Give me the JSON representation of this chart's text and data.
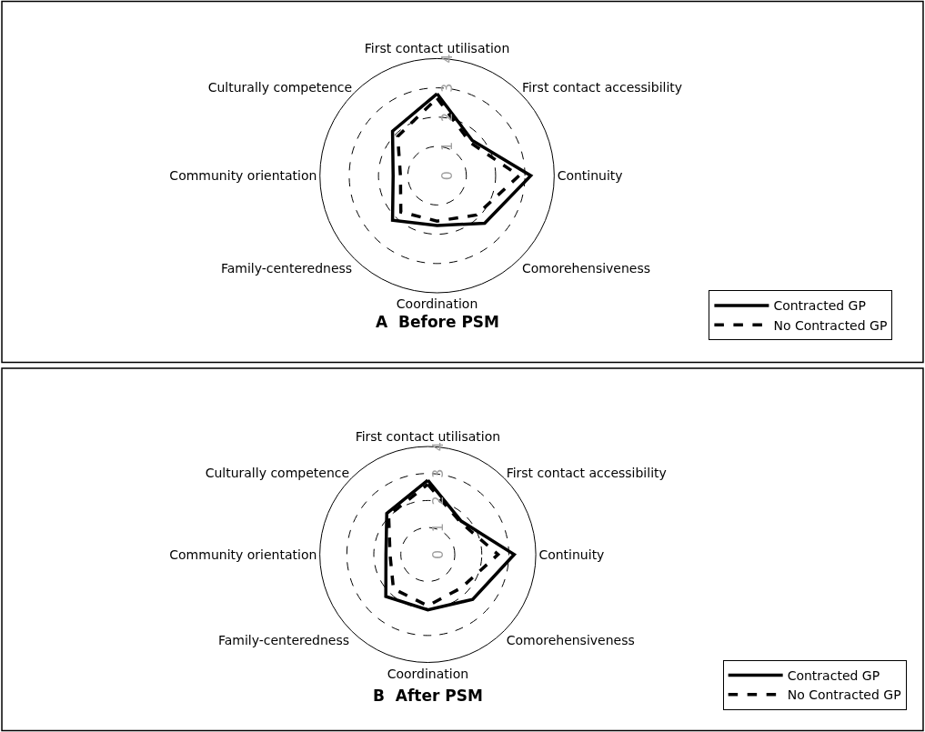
{
  "chart_data": [
    {
      "type": "radar",
      "title": "A  Before PSM",
      "categories": [
        "First contact utilisation",
        "First contact accessibility",
        "Continuity",
        "Comorehensiveness",
        "Coordination",
        "Family-centeredness",
        "Community orientation",
        "Culturally competence"
      ],
      "ylim": [
        0,
        4
      ],
      "yticks": [
        0,
        1,
        2,
        3,
        4
      ],
      "grid": true,
      "legend": "bottom right",
      "series": [
        {
          "name": "Contracted GP",
          "color": "#000000",
          "line_style": "solid",
          "values": [
            2.8,
            1.7,
            3.2,
            2.3,
            1.7,
            2.15,
            1.5,
            2.15
          ]
        },
        {
          "name": "No Contracted GP",
          "color": "#000000",
          "line_style": "dashed",
          "values": [
            2.65,
            1.6,
            2.8,
            1.9,
            1.55,
            1.75,
            1.25,
            1.9
          ]
        }
      ]
    },
    {
      "type": "radar",
      "title": "B  After PSM",
      "categories": [
        "First contact utilisation",
        "First contact accessibility",
        "Continuity",
        "Comorehensiveness",
        "Coordination",
        "Family-centeredness",
        "Community orientation",
        "Culturally competence"
      ],
      "ylim": [
        0,
        4
      ],
      "yticks": [
        0,
        1,
        2,
        3,
        4
      ],
      "grid": true,
      "legend": "bottom right",
      "series": [
        {
          "name": "Contracted GP",
          "color": "#000000",
          "line_style": "solid",
          "values": [
            2.75,
            1.75,
            3.2,
            2.35,
            2.05,
            2.2,
            1.55,
            2.15
          ]
        },
        {
          "name": "No Contracted GP",
          "color": "#000000",
          "line_style": "dashed",
          "values": [
            2.6,
            1.7,
            2.6,
            1.75,
            1.9,
            1.8,
            1.4,
            2.05
          ]
        }
      ]
    }
  ]
}
